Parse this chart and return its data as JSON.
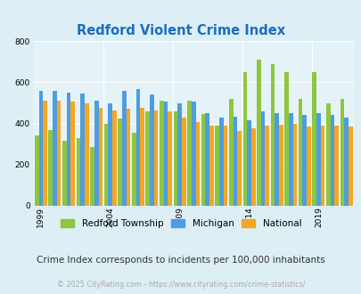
{
  "title": "Redford Violent Crime Index",
  "title_color": "#1a6ebd",
  "years": [
    1999,
    2000,
    2001,
    2002,
    2003,
    2004,
    2005,
    2006,
    2007,
    2008,
    2009,
    2010,
    2011,
    2012,
    2013,
    2014,
    2015,
    2016,
    2017,
    2018,
    2019,
    2020,
    2021
  ],
  "redford": [
    340,
    370,
    315,
    330,
    285,
    400,
    425,
    355,
    460,
    510,
    460,
    510,
    445,
    390,
    520,
    650,
    710,
    690,
    650,
    520,
    650,
    500,
    520
  ],
  "michigan": [
    560,
    560,
    550,
    545,
    510,
    500,
    560,
    565,
    540,
    505,
    500,
    505,
    450,
    430,
    435,
    415,
    460,
    450,
    450,
    440,
    450,
    440,
    430
  ],
  "national": [
    510,
    510,
    505,
    500,
    475,
    465,
    470,
    475,
    465,
    460,
    430,
    405,
    390,
    390,
    365,
    375,
    390,
    395,
    400,
    385,
    390,
    390,
    385
  ],
  "redford_color": "#8dc63f",
  "michigan_color": "#4d9de0",
  "national_color": "#f5a623",
  "bg_color": "#ddeef5",
  "plot_bg": "#e5f3f8",
  "ylim": [
    0,
    800
  ],
  "yticks": [
    0,
    200,
    400,
    600,
    800
  ],
  "xlabel_ticks": [
    1999,
    2004,
    2009,
    2014,
    2019
  ],
  "legend_labels": [
    "Redford Township",
    "Michigan",
    "National"
  ],
  "note": "Crime Index corresponds to incidents per 100,000 inhabitants",
  "copyright": "© 2025 CityRating.com - https://www.cityrating.com/crime-statistics/",
  "note_color": "#333333",
  "copyright_color": "#aaaaaa"
}
